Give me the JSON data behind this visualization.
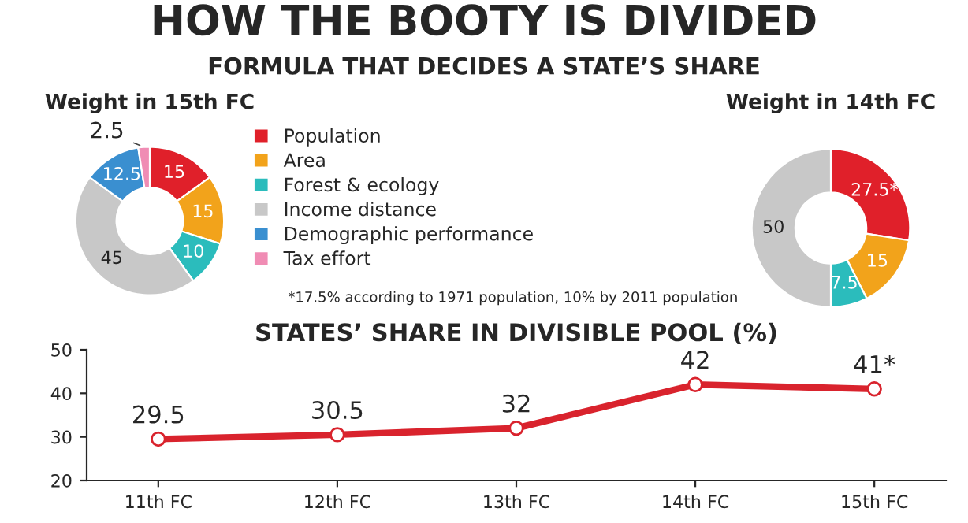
{
  "chart_data": [
    {
      "type": "donut",
      "title": "Weight in 15th FC",
      "annotations": [
        "HOW THE BOOTY IS DIVIDED",
        "FORMULA THAT DECIDES A STATE’S SHARE"
      ],
      "categories": [
        "Population",
        "Area",
        "Forest & ecology",
        "Income distance",
        "Demographic performance",
        "Tax effort"
      ],
      "values": [
        15,
        15,
        10,
        45,
        12.5,
        2.5
      ],
      "colors": [
        "#e0202a",
        "#f2a31b",
        "#2bbcbc",
        "#c8c8c8",
        "#3a8fd0",
        "#f08cb4"
      ],
      "data_labels": true,
      "legend": "right"
    },
    {
      "type": "donut",
      "title": "Weight in 14th FC",
      "annotations": [
        "*17.5% according to 1971 population, 10% by 2011 population"
      ],
      "categories": [
        null,
        null,
        null,
        null
      ],
      "values": [
        27.5,
        15,
        7.5,
        50
      ],
      "value_labels": [
        "27.5*",
        "15",
        "7.5",
        "50"
      ],
      "colors": [
        "#e0202a",
        "#f2a31b",
        "#2bbcbc",
        "#c8c8c8"
      ]
    },
    {
      "type": "line",
      "title": "STATES’ SHARE IN DIVISIBLE POOL (%)",
      "categories": [
        "11th FC",
        "12th FC",
        "13th FC",
        "14th FC",
        "15th FC"
      ],
      "series": [
        {
          "color": "#d9232d",
          "values": [
            29.5,
            30.5,
            32,
            42,
            41
          ],
          "value_labels": [
            "29.5",
            "30.5",
            "32",
            "42",
            "41*"
          ]
        }
      ],
      "ylim": [
        20,
        50
      ],
      "yticks": [
        20,
        30,
        40,
        50
      ],
      "marker": "circle",
      "line_style": "solid",
      "grid": false
    }
  ]
}
